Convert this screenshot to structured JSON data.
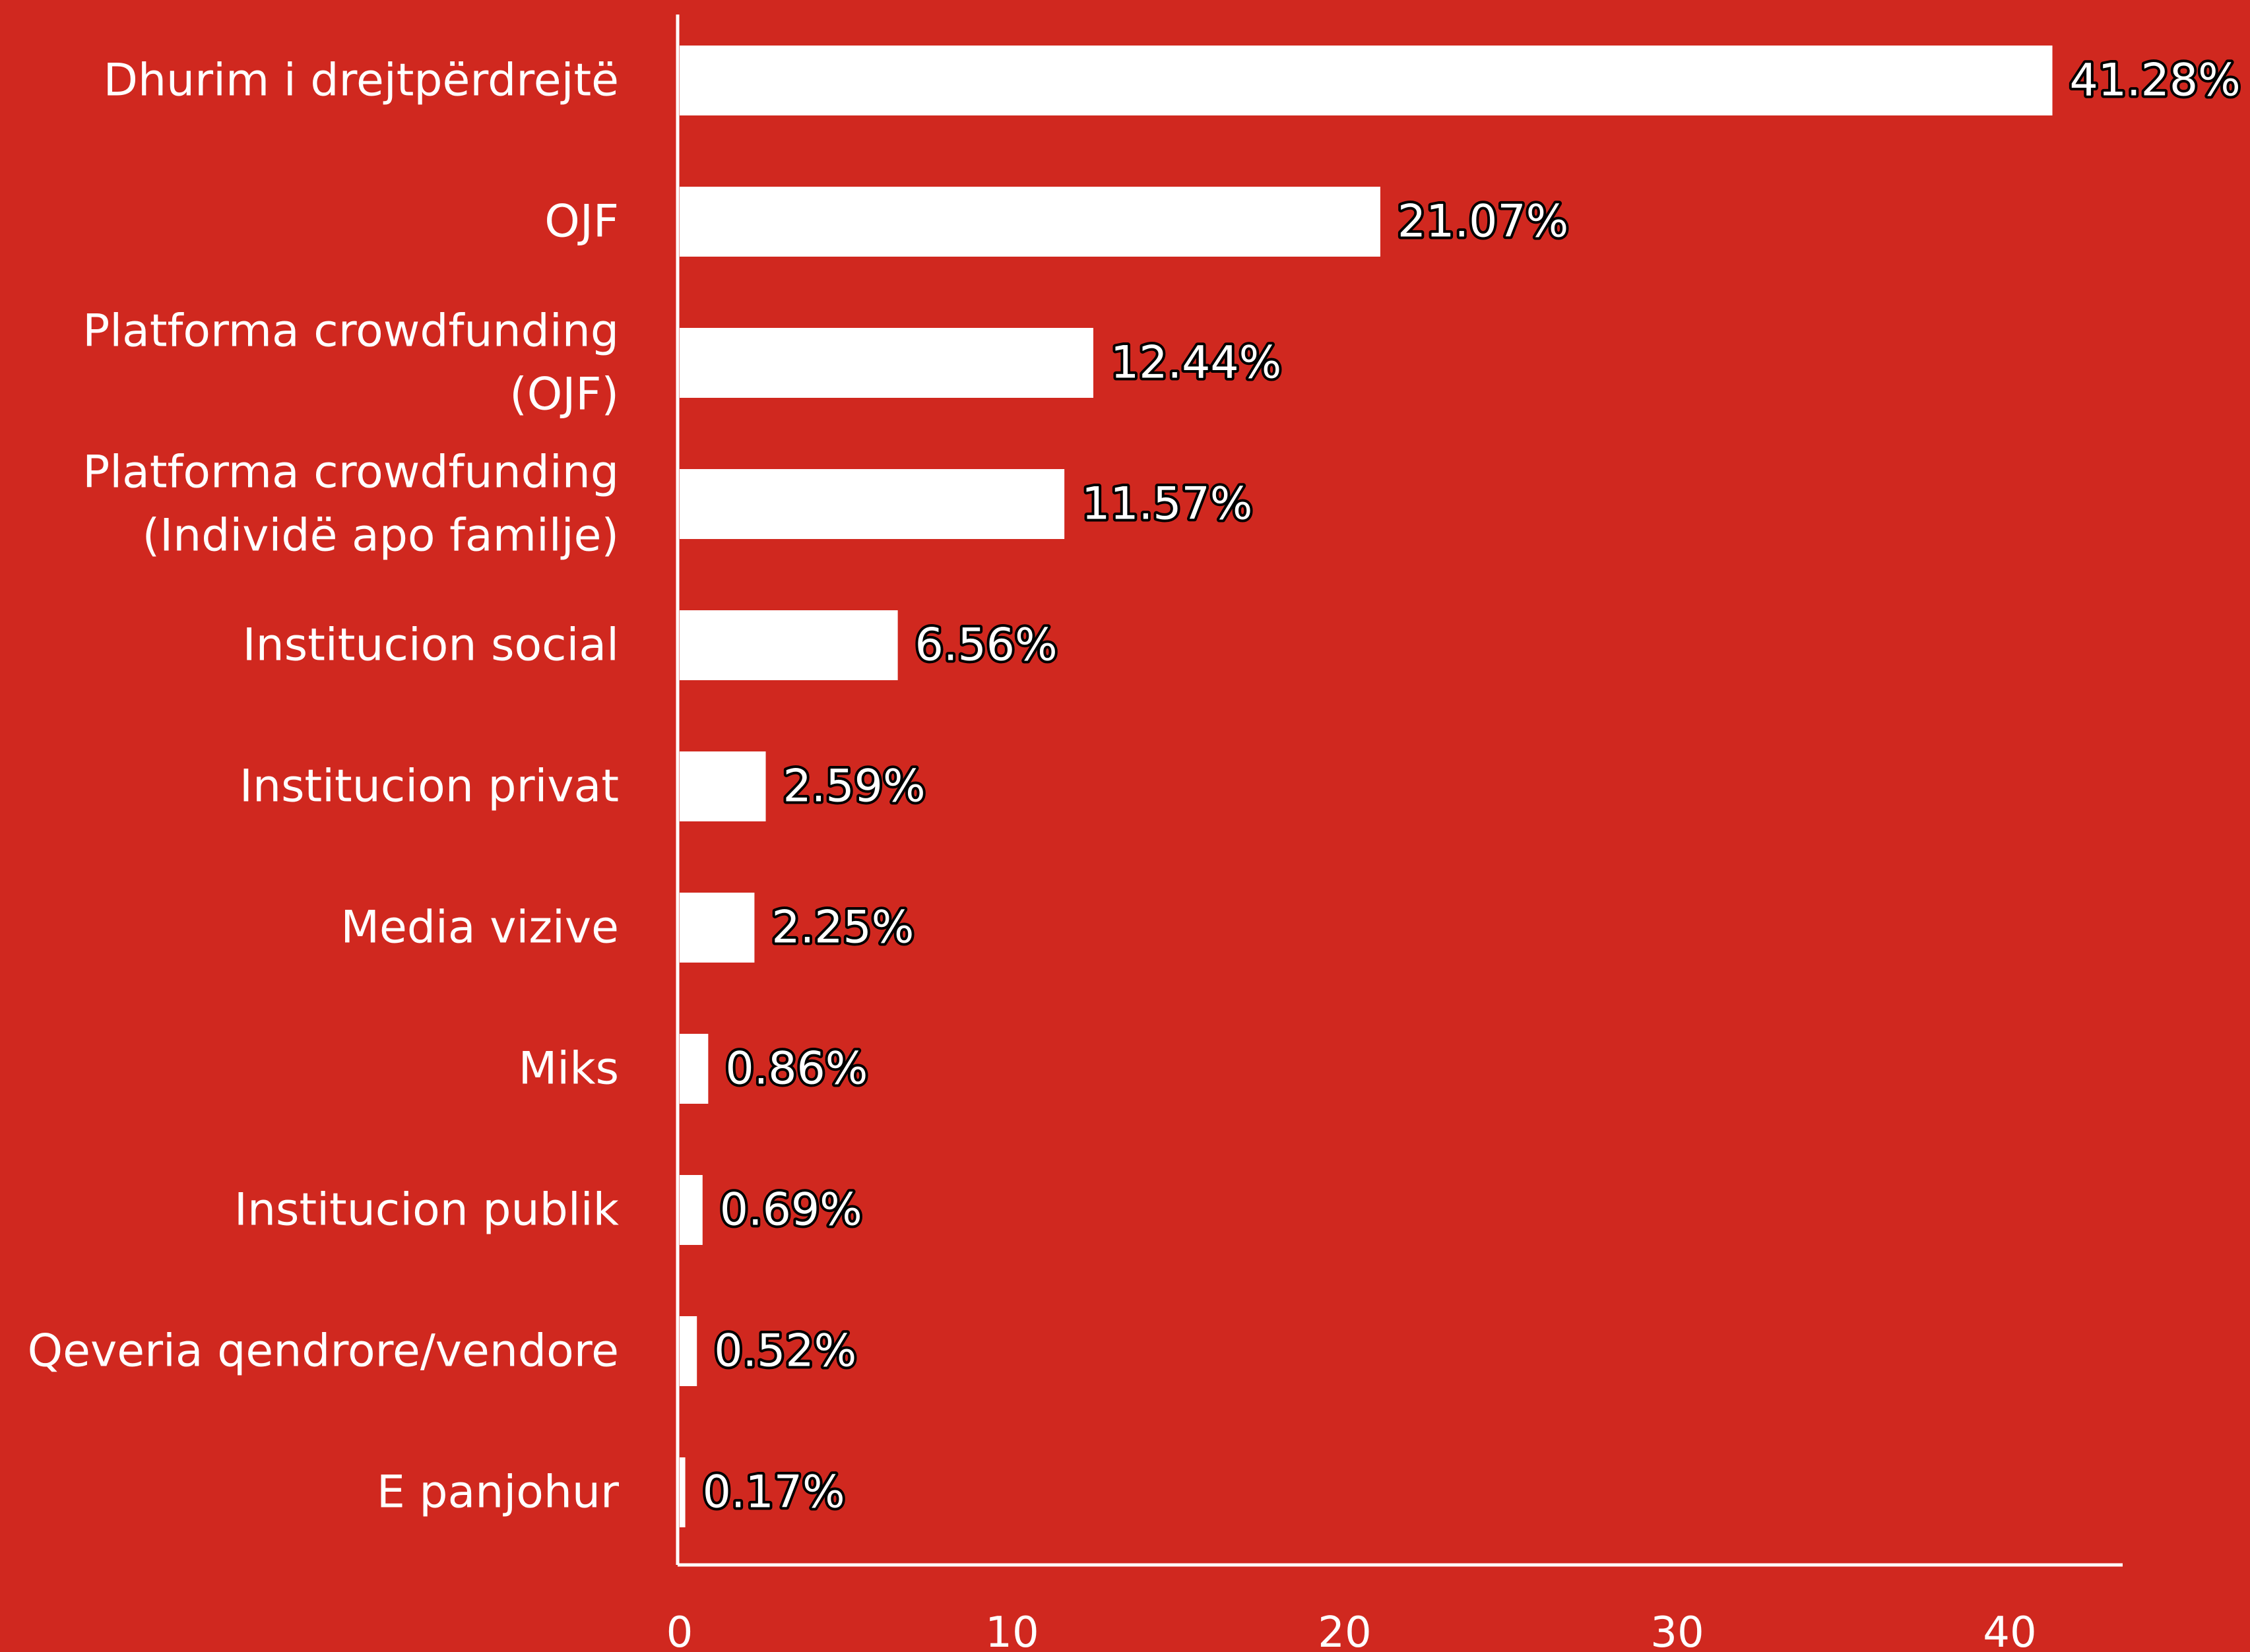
{
  "colors": {
    "background": "#D0281F",
    "bar": "#FFFFFF",
    "axis": "#FFFFFF",
    "label_outline": "#000000"
  },
  "chart_data": {
    "type": "bar",
    "orientation": "horizontal",
    "categories": [
      "Dhurim i drejtpërdrejtë",
      "OJF",
      "Platforma crowdfunding (OJF)",
      "Platforma crowdfunding (Individë apo familje)",
      "Institucion social",
      "Institucion privat",
      "Media vizive",
      "Miks",
      "Institucion publik",
      "Qeveria qendrore/vendore",
      "E panjohur"
    ],
    "category_label_lines": [
      [
        "Dhurim i drejtpërdrejtë"
      ],
      [
        "OJF"
      ],
      [
        "Platforma crowdfunding",
        "(OJF)"
      ],
      [
        "Platforma crowdfunding",
        "(Individë apo familje)"
      ],
      [
        "Institucion social"
      ],
      [
        "Institucion privat"
      ],
      [
        "Media vizive"
      ],
      [
        "Miks"
      ],
      [
        "Institucion publik"
      ],
      [
        "Qeveria qendrore/vendore"
      ],
      [
        "E panjohur"
      ]
    ],
    "values": [
      41.28,
      21.07,
      12.44,
      11.57,
      6.56,
      2.59,
      2.25,
      0.86,
      0.69,
      0.52,
      0.17
    ],
    "data_labels": [
      "41.28%",
      "21.07%",
      "12.44%",
      "11.57%",
      "6.56%",
      "2.59%",
      "2.25%",
      "0.86%",
      "0.69%",
      "0.52%",
      "0.17%"
    ],
    "x_ticks": [
      0,
      10,
      20,
      30,
      40
    ],
    "xlim": [
      0,
      43.5
    ],
    "title": "",
    "xlabel": "",
    "ylabel": "",
    "grid": false,
    "legend": false
  }
}
